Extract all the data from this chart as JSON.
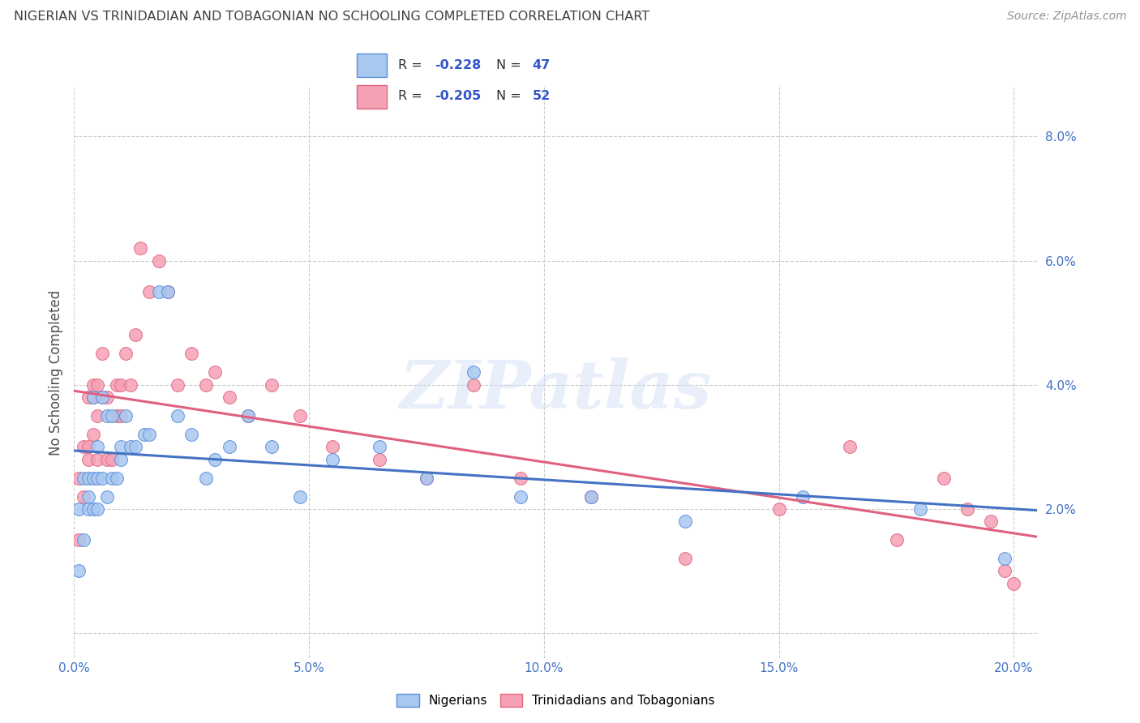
{
  "title": "NIGERIAN VS TRINIDADIAN AND TOBAGONIAN NO SCHOOLING COMPLETED CORRELATION CHART",
  "source": "Source: ZipAtlas.com",
  "ylabel": "No Schooling Completed",
  "xlim": [
    0.0,
    0.205
  ],
  "ylim": [
    -0.004,
    0.088
  ],
  "xticks": [
    0.0,
    0.05,
    0.1,
    0.15,
    0.2
  ],
  "yticks": [
    0.0,
    0.02,
    0.04,
    0.06,
    0.08
  ],
  "xticklabels": [
    "0.0%",
    "5.0%",
    "10.0%",
    "15.0%",
    "20.0%"
  ],
  "yticklabels": [
    "",
    "2.0%",
    "4.0%",
    "6.0%",
    "8.0%"
  ],
  "color_blue": "#a8c8f0",
  "color_pink": "#f5a0b5",
  "edge_blue": "#5b8dd9",
  "edge_pink": "#e06880",
  "line_blue": "#4472c4",
  "line_pink": "#e06080",
  "title_color": "#404040",
  "source_color": "#909090",
  "tick_color": "#4472c4",
  "grid_color": "#cccccc",
  "watermark": "ZIPatlas",
  "legend_r1": "-0.228",
  "legend_n1": "47",
  "legend_r2": "-0.205",
  "legend_n2": "52",
  "blue_x": [
    0.001,
    0.001,
    0.002,
    0.002,
    0.003,
    0.003,
    0.003,
    0.004,
    0.004,
    0.004,
    0.005,
    0.005,
    0.005,
    0.006,
    0.006,
    0.007,
    0.007,
    0.008,
    0.008,
    0.009,
    0.01,
    0.01,
    0.011,
    0.012,
    0.013,
    0.015,
    0.016,
    0.018,
    0.02,
    0.022,
    0.025,
    0.028,
    0.03,
    0.033,
    0.037,
    0.042,
    0.048,
    0.055,
    0.065,
    0.075,
    0.085,
    0.095,
    0.11,
    0.13,
    0.155,
    0.18,
    0.198
  ],
  "blue_y": [
    0.01,
    0.02,
    0.015,
    0.025,
    0.022,
    0.02,
    0.025,
    0.02,
    0.025,
    0.038,
    0.02,
    0.025,
    0.03,
    0.025,
    0.038,
    0.022,
    0.035,
    0.025,
    0.035,
    0.025,
    0.03,
    0.028,
    0.035,
    0.03,
    0.03,
    0.032,
    0.032,
    0.055,
    0.055,
    0.035,
    0.032,
    0.025,
    0.028,
    0.03,
    0.035,
    0.03,
    0.022,
    0.028,
    0.03,
    0.025,
    0.042,
    0.022,
    0.022,
    0.018,
    0.022,
    0.02,
    0.012
  ],
  "pink_x": [
    0.001,
    0.001,
    0.002,
    0.002,
    0.003,
    0.003,
    0.003,
    0.004,
    0.004,
    0.004,
    0.005,
    0.005,
    0.005,
    0.006,
    0.006,
    0.007,
    0.007,
    0.008,
    0.009,
    0.009,
    0.01,
    0.01,
    0.011,
    0.012,
    0.013,
    0.014,
    0.016,
    0.018,
    0.02,
    0.022,
    0.025,
    0.028,
    0.03,
    0.033,
    0.037,
    0.042,
    0.048,
    0.055,
    0.065,
    0.075,
    0.085,
    0.095,
    0.11,
    0.13,
    0.15,
    0.165,
    0.175,
    0.185,
    0.19,
    0.195,
    0.198,
    0.2
  ],
  "pink_y": [
    0.015,
    0.025,
    0.022,
    0.03,
    0.03,
    0.028,
    0.038,
    0.032,
    0.038,
    0.04,
    0.028,
    0.035,
    0.04,
    0.038,
    0.045,
    0.028,
    0.038,
    0.028,
    0.035,
    0.04,
    0.035,
    0.04,
    0.045,
    0.04,
    0.048,
    0.062,
    0.055,
    0.06,
    0.055,
    0.04,
    0.045,
    0.04,
    0.042,
    0.038,
    0.035,
    0.04,
    0.035,
    0.03,
    0.028,
    0.025,
    0.04,
    0.025,
    0.022,
    0.012,
    0.02,
    0.03,
    0.015,
    0.025,
    0.02,
    0.018,
    0.01,
    0.008
  ]
}
